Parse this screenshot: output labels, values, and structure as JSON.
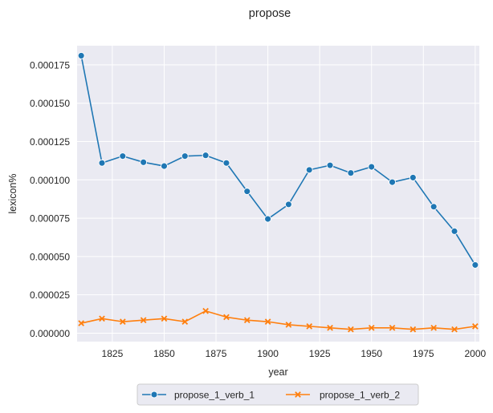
{
  "chart_data": {
    "type": "line",
    "title": "propose",
    "xlabel": "year",
    "ylabel": "lexicon%",
    "xlim": [
      1808,
      2002
    ],
    "ylim": [
      -5.5e-06,
      0.0001875
    ],
    "x_ticks": [
      1825,
      1850,
      1875,
      1900,
      1925,
      1950,
      1975,
      2000
    ],
    "y_ticks": [
      0.0,
      2.5e-05,
      5e-05,
      7.5e-05,
      0.0001,
      0.000125,
      0.00015,
      0.000175
    ],
    "y_tick_labels": [
      "0.000000",
      "0.000025",
      "0.000050",
      "0.000075",
      "0.000100",
      "0.000125",
      "0.000150",
      "0.000175"
    ],
    "x_tick_labels": [
      "1825",
      "1850",
      "1875",
      "1900",
      "1925",
      "1950",
      "1975",
      "2000"
    ],
    "grid": true,
    "legend_position": "bottom-center",
    "x": [
      1810,
      1820,
      1830,
      1840,
      1850,
      1860,
      1870,
      1880,
      1890,
      1900,
      1910,
      1920,
      1930,
      1940,
      1950,
      1960,
      1970,
      1980,
      1990,
      2000
    ],
    "series": [
      {
        "name": "propose_1_verb_1",
        "color": "#1f77b4",
        "marker": "circle",
        "values": [
          0.000181,
          0.000111,
          0.0001155,
          0.0001115,
          0.000109,
          0.0001155,
          0.000116,
          0.000111,
          9.25e-05,
          7.45e-05,
          8.4e-05,
          0.0001065,
          0.0001095,
          0.0001045,
          0.0001085,
          9.85e-05,
          0.0001015,
          8.25e-05,
          6.65e-05,
          4.45e-05
        ]
      },
      {
        "name": "propose_1_verb_2",
        "color": "#ff7f0e",
        "marker": "x",
        "values": [
          6.5e-06,
          9.5e-06,
          7.5e-06,
          8.5e-06,
          9.5e-06,
          7.5e-06,
          1.45e-05,
          1.05e-05,
          8.5e-06,
          7.5e-06,
          5.5e-06,
          4.5e-06,
          3.5e-06,
          2.5e-06,
          3.5e-06,
          3.5e-06,
          2.5e-06,
          3.5e-06,
          2.5e-06,
          4.5e-06
        ]
      }
    ]
  }
}
